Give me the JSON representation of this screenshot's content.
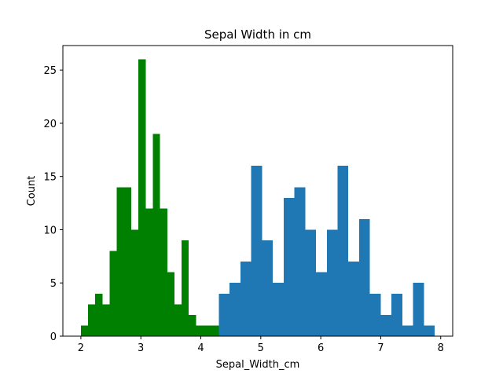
{
  "chart_data": {
    "type": "bar",
    "title": "Sepal Width in cm",
    "xlabel": "Sepal_Width_cm",
    "ylabel": "Count",
    "xlim": [
      1.7,
      8.2
    ],
    "ylim": [
      0,
      27.3
    ],
    "xticks": [
      2,
      3,
      4,
      5,
      6,
      7,
      8
    ],
    "yticks": [
      0,
      5,
      10,
      15,
      20,
      25
    ],
    "grid": false,
    "series": [
      {
        "color": "#008000",
        "bins": [
          {
            "x0": 2.0,
            "x1": 2.12,
            "count": 1
          },
          {
            "x0": 2.12,
            "x1": 2.24,
            "count": 3
          },
          {
            "x0": 2.24,
            "x1": 2.36,
            "count": 4
          },
          {
            "x0": 2.36,
            "x1": 2.48,
            "count": 3
          },
          {
            "x0": 2.48,
            "x1": 2.6,
            "count": 8
          },
          {
            "x0": 2.6,
            "x1": 2.72,
            "count": 14
          },
          {
            "x0": 2.72,
            "x1": 2.84,
            "count": 14
          },
          {
            "x0": 2.84,
            "x1": 2.96,
            "count": 10
          },
          {
            "x0": 2.96,
            "x1": 3.08,
            "count": 26
          },
          {
            "x0": 3.08,
            "x1": 3.2,
            "count": 12
          },
          {
            "x0": 3.2,
            "x1": 3.32,
            "count": 19
          },
          {
            "x0": 3.32,
            "x1": 3.44,
            "count": 12
          },
          {
            "x0": 3.44,
            "x1": 3.56,
            "count": 6
          },
          {
            "x0": 3.56,
            "x1": 3.68,
            "count": 3
          },
          {
            "x0": 3.68,
            "x1": 3.8,
            "count": 9
          },
          {
            "x0": 3.8,
            "x1": 3.92,
            "count": 2
          },
          {
            "x0": 3.92,
            "x1": 4.04,
            "count": 1
          },
          {
            "x0": 4.04,
            "x1": 4.16,
            "count": 1
          },
          {
            "x0": 4.16,
            "x1": 4.28,
            "count": 1
          },
          {
            "x0": 4.28,
            "x1": 4.4,
            "count": 1
          }
        ]
      },
      {
        "color": "#1f77b4",
        "bins": [
          {
            "x0": 4.3,
            "x1": 4.48,
            "count": 4
          },
          {
            "x0": 4.48,
            "x1": 4.66,
            "count": 5
          },
          {
            "x0": 4.66,
            "x1": 4.84,
            "count": 7
          },
          {
            "x0": 4.84,
            "x1": 5.02,
            "count": 16
          },
          {
            "x0": 5.02,
            "x1": 5.2,
            "count": 9
          },
          {
            "x0": 5.2,
            "x1": 5.38,
            "count": 5
          },
          {
            "x0": 5.38,
            "x1": 5.56,
            "count": 13
          },
          {
            "x0": 5.56,
            "x1": 5.74,
            "count": 14
          },
          {
            "x0": 5.74,
            "x1": 5.92,
            "count": 10
          },
          {
            "x0": 5.92,
            "x1": 6.1,
            "count": 6
          },
          {
            "x0": 6.1,
            "x1": 6.28,
            "count": 10
          },
          {
            "x0": 6.28,
            "x1": 6.46,
            "count": 16
          },
          {
            "x0": 6.46,
            "x1": 6.64,
            "count": 7
          },
          {
            "x0": 6.64,
            "x1": 6.82,
            "count": 11
          },
          {
            "x0": 6.82,
            "x1": 7.0,
            "count": 4
          },
          {
            "x0": 7.0,
            "x1": 7.18,
            "count": 2
          },
          {
            "x0": 7.18,
            "x1": 7.36,
            "count": 4
          },
          {
            "x0": 7.36,
            "x1": 7.54,
            "count": 1
          },
          {
            "x0": 7.54,
            "x1": 7.72,
            "count": 5
          },
          {
            "x0": 7.72,
            "x1": 7.9,
            "count": 1
          }
        ]
      }
    ]
  }
}
